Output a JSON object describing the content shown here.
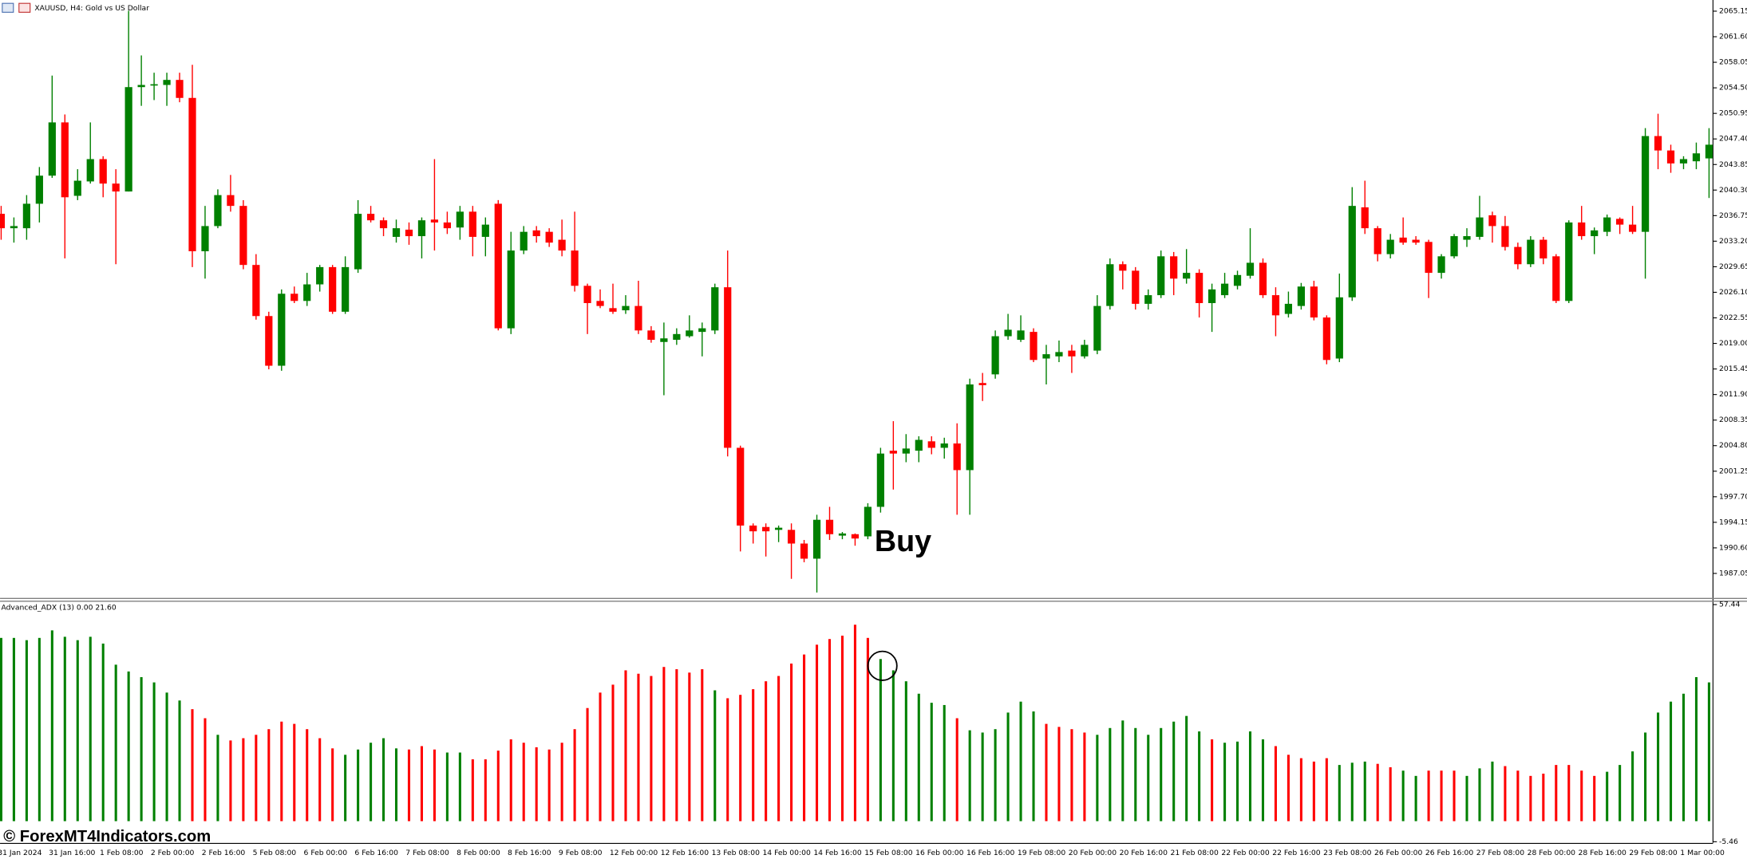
{
  "chart_data": [
    {
      "type": "candlestick",
      "title": "XAUUSD, H4:  Gold vs US Dollar",
      "annotation": "Buy",
      "categories": [
        "31 Jan 2024",
        null,
        null,
        null,
        "31 Jan 16:00",
        null,
        null,
        null,
        "1 Feb 08:00",
        null,
        null,
        null,
        "2 Feb 00:00",
        null,
        null,
        null,
        "2 Feb 16:00",
        null,
        null,
        null,
        "5 Feb 08:00",
        null,
        null,
        null,
        "6 Feb 00:00",
        null,
        null,
        null,
        "6 Feb 16:00",
        null,
        null,
        null,
        "7 Feb 08:00",
        null,
        null,
        null,
        "8 Feb 00:00",
        null,
        null,
        null,
        "8 Feb 16:00",
        null,
        null,
        null,
        "9 Feb 08:00",
        null,
        null,
        null,
        "12 Feb 00:00",
        null,
        null,
        null,
        "12 Feb 16:00",
        null,
        null,
        null,
        "13 Feb 08:00",
        null,
        null,
        null,
        "14 Feb 00:00",
        null,
        null,
        null,
        "14 Feb 16:00",
        null,
        null,
        null,
        "15 Feb 08:00",
        null,
        null,
        null,
        "16 Feb 00:00",
        null,
        null,
        null,
        "16 Feb 16:00",
        null,
        null,
        null,
        "19 Feb 08:00",
        null,
        null,
        null,
        "20 Feb 00:00",
        null,
        null,
        null,
        "20 Feb 16:00",
        null,
        null,
        null,
        "21 Feb 08:00",
        null,
        null,
        null,
        "22 Feb 00:00",
        null,
        null,
        null,
        "22 Feb 16:00",
        null,
        null,
        null,
        "23 Feb 08:00",
        null,
        null,
        null,
        "26 Feb 00:00",
        null,
        null,
        null,
        "26 Feb 16:00",
        null,
        null,
        null,
        "27 Feb 08:00",
        null,
        null,
        null,
        "28 Feb 00:00",
        null,
        null,
        null,
        "28 Feb 16:00",
        null,
        null,
        null,
        "29 Feb 08:00",
        null,
        null,
        null,
        "1 Mar 00:00",
        null,
        null
      ],
      "open": [
        2037.0,
        2035.0,
        2035.0,
        2038.4,
        2042.3,
        2049.7,
        2039.5,
        2041.5,
        2044.6,
        2041.2,
        2040.1,
        2054.6,
        2054.9,
        2054.9,
        2055.6,
        2053.1,
        2031.8,
        2035.3,
        2039.6,
        2038.1,
        2029.9,
        2022.8,
        2015.9,
        2025.9,
        2024.9,
        2027.2,
        2029.6,
        2023.4,
        2029.3,
        2037.0,
        2036.1,
        2033.8,
        2034.8,
        2033.9,
        2036.2,
        2035.8,
        2035.1,
        2037.3,
        2033.8,
        2038.4,
        2021.1,
        2031.9,
        2034.7,
        2034.5,
        2033.4,
        2031.9,
        2027.0,
        2024.9,
        2023.9,
        2023.6,
        2024.2,
        2020.8,
        2019.2,
        2019.5,
        2020.0,
        2020.6,
        2020.8,
        2026.8,
        2004.5,
        1993.7,
        1993.5,
        1993.1,
        1993.1,
        1991.2,
        1989.1,
        1994.5,
        1992.3,
        1992.5,
        1992.2,
        1996.3,
        2004.1,
        2003.7,
        2004.1,
        2005.4,
        2004.5,
        2005.1,
        2001.4,
        2013.5,
        2014.7,
        2020.0,
        2019.5,
        2020.6,
        2016.9,
        2017.2,
        2018.0,
        2017.2,
        2018.0,
        2024.2,
        2030.0,
        2029.1,
        2024.5,
        2025.7,
        2031.1,
        2028.0,
        2028.8,
        2024.6,
        2025.7,
        2027.0,
        2028.4,
        2030.2,
        2025.7,
        2023.1,
        2024.2,
        2026.9,
        2022.6,
        2016.9,
        2025.4,
        2037.9,
        2035.0,
        2031.4,
        2033.7,
        2033.4,
        2033.1,
        2028.8,
        2031.1,
        2033.4,
        2033.8,
        2036.8,
        2035.3,
        2032.4,
        2030.0,
        2033.4,
        2031.1,
        2024.9,
        2035.8,
        2033.9,
        2034.5,
        2036.3,
        2035.5,
        2034.5,
        2047.8,
        2045.8,
        2044.0,
        2044.3,
        2044.7
      ],
      "high": [
        2038.1,
        2036.5,
        2039.6,
        2043.5,
        2056.2,
        2050.8,
        2043.2,
        2049.7,
        2045.0,
        2043.2,
        2065.2,
        2059.0,
        2056.6,
        2056.6,
        2056.6,
        2057.7,
        2038.1,
        2040.4,
        2042.4,
        2038.9,
        2031.4,
        2023.4,
        2026.5,
        2026.9,
        2028.8,
        2029.9,
        2029.9,
        2031.1,
        2038.9,
        2038.1,
        2036.5,
        2036.2,
        2035.8,
        2036.5,
        2044.6,
        2037.3,
        2038.1,
        2038.1,
        2036.5,
        2038.9,
        2034.5,
        2035.3,
        2035.3,
        2035.0,
        2036.2,
        2037.3,
        2027.3,
        2026.5,
        2027.3,
        2025.7,
        2027.7,
        2021.4,
        2021.9,
        2021.1,
        2022.9,
        2021.9,
        2027.3,
        2031.9,
        2004.8,
        1994.0,
        1994.0,
        1993.7,
        1994.0,
        1991.7,
        1995.2,
        1996.3,
        1992.8,
        1992.6,
        1996.8,
        2004.5,
        2008.2,
        2006.4,
        2006.1,
        2006.1,
        2005.9,
        2007.9,
        2014.1,
        2014.9,
        2020.8,
        2023.1,
        2022.9,
        2021.1,
        2018.8,
        2019.4,
        2018.8,
        2019.5,
        2025.7,
        2030.8,
        2030.4,
        2029.6,
        2026.5,
        2031.9,
        2031.7,
        2032.1,
        2029.3,
        2027.3,
        2028.8,
        2029.1,
        2035.0,
        2030.8,
        2026.8,
        2026.2,
        2027.4,
        2027.7,
        2022.9,
        2028.7,
        2040.7,
        2041.6,
        2035.3,
        2034.2,
        2036.5,
        2033.9,
        2033.4,
        2031.4,
        2034.2,
        2035.0,
        2039.5,
        2037.3,
        2036.7,
        2033.0,
        2033.9,
        2033.8,
        2031.4,
        2036.1,
        2038.1,
        2035.1,
        2036.9,
        2036.5,
        2038.1,
        2048.9,
        2050.9,
        2046.6,
        2045.0,
        2046.9,
        2048.9
      ],
      "low": [
        2033.4,
        2033.0,
        2033.4,
        2035.8,
        2042.0,
        2030.8,
        2038.9,
        2041.2,
        2039.3,
        2030.0,
        2040.1,
        2052.0,
        2052.8,
        2052.0,
        2052.5,
        2029.6,
        2028.0,
        2035.0,
        2037.3,
        2029.3,
        2022.3,
        2015.4,
        2015.2,
        2024.6,
        2024.2,
        2026.2,
        2023.1,
        2023.1,
        2028.8,
        2035.8,
        2033.9,
        2033.0,
        2032.7,
        2030.8,
        2031.9,
        2034.2,
        2033.4,
        2031.1,
        2031.1,
        2020.8,
        2020.3,
        2031.4,
        2033.0,
        2032.4,
        2031.1,
        2026.2,
        2020.3,
        2023.9,
        2023.1,
        2023.1,
        2020.3,
        2019.1,
        2011.8,
        2018.8,
        2019.8,
        2017.2,
        2020.3,
        2003.3,
        1990.1,
        1991.2,
        1989.4,
        1991.4,
        1986.3,
        1988.6,
        1984.4,
        1991.7,
        1991.8,
        1990.9,
        1991.8,
        1995.5,
        1998.7,
        2002.5,
        2002.5,
        2003.6,
        2003.0,
        1995.2,
        1995.2,
        2011.0,
        2014.1,
        2019.5,
        2019.2,
        2016.4,
        2013.3,
        2016.4,
        2014.9,
        2016.9,
        2017.5,
        2023.7,
        2026.5,
        2023.7,
        2023.7,
        2025.3,
        2025.7,
        2027.3,
        2022.6,
        2020.6,
        2025.3,
        2026.5,
        2028.0,
        2025.3,
        2020.0,
        2022.6,
        2023.7,
        2022.2,
        2016.1,
        2016.4,
        2024.9,
        2034.2,
        2030.4,
        2030.8,
        2032.7,
        2032.7,
        2025.3,
        2028.0,
        2030.8,
        2032.4,
        2033.4,
        2033.0,
        2031.9,
        2029.3,
        2029.6,
        2030.0,
        2024.6,
        2024.6,
        2033.4,
        2031.4,
        2033.9,
        2034.2,
        2034.2,
        2028.0,
        2043.2,
        2042.7,
        2043.2,
        2043.2,
        2039.2
      ],
      "close": [
        2035.0,
        2035.3,
        2038.4,
        2042.3,
        2049.7,
        2039.3,
        2041.6,
        2044.6,
        2041.2,
        2040.1,
        2054.6,
        2054.9,
        2055.0,
        2055.6,
        2053.1,
        2031.8,
        2035.3,
        2039.6,
        2038.1,
        2029.9,
        2022.8,
        2015.9,
        2025.9,
        2024.9,
        2027.2,
        2029.6,
        2023.4,
        2029.6,
        2037.0,
        2036.1,
        2035.0,
        2035.0,
        2033.9,
        2036.1,
        2035.8,
        2035.0,
        2037.3,
        2033.8,
        2035.5,
        2021.1,
        2031.9,
        2034.5,
        2033.9,
        2033.0,
        2031.9,
        2027.0,
        2024.6,
        2024.2,
        2023.4,
        2024.2,
        2020.8,
        2019.5,
        2019.7,
        2020.3,
        2020.8,
        2021.1,
        2026.8,
        2004.5,
        1993.7,
        1992.9,
        1992.9,
        1993.4,
        1991.2,
        1989.1,
        1994.5,
        1992.5,
        1992.6,
        1991.9,
        1996.3,
        2003.7,
        2003.7,
        2004.4,
        2005.6,
        2004.5,
        2005.1,
        2001.4,
        2013.3,
        2013.2,
        2020.0,
        2020.9,
        2020.8,
        2016.7,
        2017.5,
        2017.8,
        2017.2,
        2018.8,
        2024.2,
        2030.0,
        2029.1,
        2024.5,
        2025.7,
        2031.1,
        2028.0,
        2028.8,
        2024.6,
        2026.5,
        2027.3,
        2028.5,
        2030.2,
        2025.7,
        2022.9,
        2024.5,
        2026.9,
        2022.6,
        2016.7,
        2025.4,
        2038.1,
        2035.0,
        2031.4,
        2033.4,
        2033.0,
        2033.0,
        2028.8,
        2031.1,
        2033.9,
        2033.9,
        2036.5,
        2035.3,
        2032.4,
        2030.0,
        2033.4,
        2030.8,
        2024.9,
        2035.8,
        2033.9,
        2034.7,
        2036.5,
        2035.5,
        2034.5,
        2047.8,
        2045.8,
        2044.0,
        2044.6,
        2045.4,
        2046.6
      ],
      "up_color": "#008000",
      "down_color": "#ff0000",
      "ylim": [
        1983.65,
        2066.7
      ],
      "yticks": [
        {
          "value": 2065.15,
          "label": "2065.15"
        },
        {
          "value": 2061.6,
          "label": "2061.60"
        },
        {
          "value": 2058.05,
          "label": "2058.05"
        },
        {
          "value": 2054.5,
          "label": "2054.50"
        },
        {
          "value": 2050.95,
          "label": "2050.95"
        },
        {
          "value": 2047.4,
          "label": "2047.40"
        },
        {
          "value": 2043.85,
          "label": "2043.85"
        },
        {
          "value": 2040.3,
          "label": "2040.30"
        },
        {
          "value": 2036.75,
          "label": "2036.75"
        },
        {
          "value": 2033.2,
          "label": "2033.20"
        },
        {
          "value": 2029.65,
          "label": "2029.65"
        },
        {
          "value": 2026.1,
          "label": "2026.10"
        },
        {
          "value": 2022.55,
          "label": "2022.55"
        },
        {
          "value": 2019,
          "label": "2019.00"
        },
        {
          "value": 2015.45,
          "label": "2015.45"
        },
        {
          "value": 2011.9,
          "label": "2011.90"
        },
        {
          "value": 2008.35,
          "label": "2008.35"
        },
        {
          "value": 2004.8,
          "label": "2004.80"
        },
        {
          "value": 2001.25,
          "label": "2001.25"
        },
        {
          "value": 1997.7,
          "label": "1997.70"
        },
        {
          "value": 1994.15,
          "label": "1994.15"
        },
        {
          "value": 1990.6,
          "label": "1990.60"
        },
        {
          "value": 1987.05,
          "label": "1987.05"
        }
      ]
    },
    {
      "type": "bar",
      "title": "Advanced_ADX (13) 0.00 21.60",
      "values": [
        48.6,
        48.6,
        48.0,
        48.6,
        50.6,
        48.9,
        48.0,
        48.9,
        47.1,
        41.5,
        39.7,
        38.2,
        36.8,
        34.1,
        32.0,
        29.7,
        27.3,
        22.9,
        21.4,
        22.0,
        22.9,
        24.4,
        26.4,
        25.8,
        24.4,
        22.0,
        19.3,
        17.6,
        19.0,
        20.8,
        22.0,
        19.3,
        19.0,
        19.9,
        19.0,
        18.2,
        18.2,
        16.4,
        16.4,
        18.7,
        21.7,
        20.8,
        19.6,
        19.0,
        20.8,
        24.4,
        30.0,
        34.1,
        36.2,
        40.0,
        39.1,
        38.5,
        40.9,
        40.3,
        39.4,
        40.3,
        34.7,
        32.6,
        33.5,
        35.0,
        37.1,
        38.5,
        41.8,
        44.2,
        46.8,
        48.3,
        49.2,
        52.1,
        48.6,
        43.0,
        40.0,
        37.1,
        33.8,
        31.4,
        30.8,
        27.3,
        24.1,
        23.5,
        24.4,
        28.8,
        31.7,
        29.1,
        25.8,
        25.0,
        24.4,
        23.5,
        22.9,
        24.7,
        26.7,
        24.7,
        22.9,
        24.7,
        26.4,
        27.9,
        23.8,
        21.7,
        20.8,
        21.1,
        23.8,
        21.7,
        19.9,
        17.6,
        16.7,
        15.8,
        16.7,
        14.9,
        15.5,
        15.8,
        15.2,
        14.3,
        13.4,
        12.0,
        13.4,
        13.4,
        13.4,
        12.0,
        14.0,
        15.8,
        14.6,
        13.4,
        12.0,
        12.6,
        14.9,
        14.9,
        13.4,
        12.0,
        13.1,
        14.9,
        18.5,
        23.5,
        28.8,
        31.7,
        33.8,
        38.2,
        36.8
      ],
      "colors": [
        "#008000",
        "#008000",
        "#008000",
        "#008000",
        "#008000",
        "#008000",
        "#008000",
        "#008000",
        "#008000",
        "#008000",
        "#008000",
        "#008000",
        "#008000",
        "#008000",
        "#008000",
        "#ff0000",
        "#ff0000",
        "#008000",
        "#ff0000",
        "#ff0000",
        "#ff0000",
        "#ff0000",
        "#ff0000",
        "#ff0000",
        "#ff0000",
        "#ff0000",
        "#ff0000",
        "#008000",
        "#008000",
        "#008000",
        "#008000",
        "#008000",
        "#ff0000",
        "#ff0000",
        "#ff0000",
        "#008000",
        "#008000",
        "#ff0000",
        "#ff0000",
        "#ff0000",
        "#ff0000",
        "#ff0000",
        "#ff0000",
        "#ff0000",
        "#ff0000",
        "#ff0000",
        "#ff0000",
        "#ff0000",
        "#ff0000",
        "#ff0000",
        "#ff0000",
        "#ff0000",
        "#ff0000",
        "#ff0000",
        "#ff0000",
        "#ff0000",
        "#008000",
        "#ff0000",
        "#ff0000",
        "#ff0000",
        "#ff0000",
        "#ff0000",
        "#ff0000",
        "#ff0000",
        "#ff0000",
        "#ff0000",
        "#ff0000",
        "#ff0000",
        "#ff0000",
        "#008000",
        "#008000",
        "#008000",
        "#008000",
        "#008000",
        "#008000",
        "#ff0000",
        "#008000",
        "#008000",
        "#008000",
        "#008000",
        "#008000",
        "#008000",
        "#ff0000",
        "#ff0000",
        "#ff0000",
        "#ff0000",
        "#008000",
        "#008000",
        "#008000",
        "#008000",
        "#008000",
        "#008000",
        "#008000",
        "#008000",
        "#008000",
        "#ff0000",
        "#008000",
        "#008000",
        "#008000",
        "#008000",
        "#ff0000",
        "#ff0000",
        "#ff0000",
        "#ff0000",
        "#ff0000",
        "#008000",
        "#008000",
        "#008000",
        "#ff0000",
        "#ff0000",
        "#008000",
        "#008000",
        "#ff0000",
        "#ff0000",
        "#ff0000",
        "#008000",
        "#008000",
        "#008000",
        "#ff0000",
        "#ff0000",
        "#ff0000",
        "#ff0000",
        "#ff0000",
        "#ff0000",
        "#ff0000",
        "#ff0000",
        "#008000",
        "#008000",
        "#008000",
        "#008000",
        "#008000",
        "#008000",
        "#008000",
        "#008000",
        "#008000"
      ],
      "ylim": [
        -5.46,
        57.44
      ],
      "yticks": [
        57.44,
        -5.46
      ]
    }
  ],
  "watermark": "© ForexMT4Indicators.com"
}
